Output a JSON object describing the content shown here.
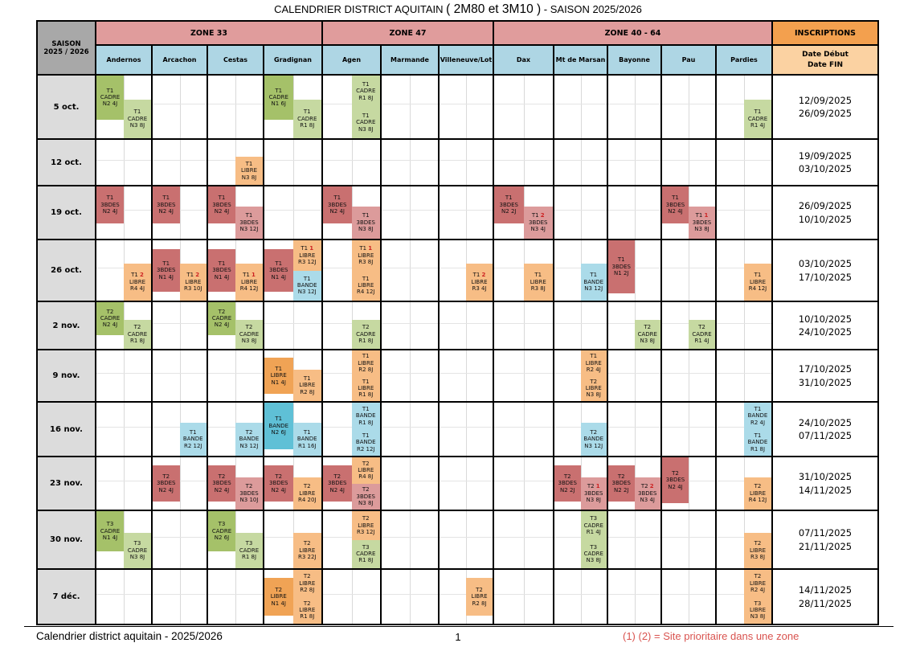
{
  "title": {
    "part1": "CALENDRIER DISTRICT AQUITAIN ",
    "part2": "( 2M80 et 3M10 )",
    "part3": " - SAISON 2025/2026"
  },
  "header": {
    "saison": "SAISON\n2025 / 2026",
    "inscriptions": "INSCRIPTIONS",
    "dates_label": "Date Début\nDate FIN",
    "zones": [
      {
        "label": "ZONE 33",
        "cities": [
          "Andernos",
          "Arcachon",
          "Cestas",
          "Gradignan"
        ]
      },
      {
        "label": "ZONE 47",
        "cities": [
          "Agen",
          "Marmande",
          "Villeneuve/Lot"
        ]
      },
      {
        "label": "ZONE 40 - 64",
        "cities": [
          "Dax",
          "Mt de Marsan",
          "Bayonne",
          "Pau",
          "Pardies"
        ]
      }
    ]
  },
  "palette": {
    "gd": "#a5c169",
    "gl": "#c6d9a1",
    "rd": "#c97070",
    "rl": "#dc9b9b",
    "od": "#f0a355",
    "ol": "#f7bd85",
    "bd": "#5fc0d6",
    "bl": "#abdbe9",
    "zone_header": "#e09c9c",
    "city_header": "#aed6e4",
    "inscriptions_header": "#f3a04e",
    "dates_header": "#fbd2a2",
    "saison_bg": "#a8a8a8",
    "rowlabel_bg": "#dcdcdc",
    "prio": "#cc2222",
    "legend_red": "#d9534f"
  },
  "rows": [
    {
      "date": "5 oct.",
      "debut": "12/09/2025",
      "fin": "26/09/2025",
      "cells": {
        "Andernos": [
          {
            "col": "L",
            "pos": "top",
            "c": "gd",
            "l1": "T1",
            "l2": "CADRE",
            "l3": "N2 4J"
          },
          {
            "col": "R",
            "pos": "bottom",
            "c": "gl",
            "l1": "T1",
            "l2": "CADRE",
            "l3": "N3 8J"
          }
        ],
        "Gradignan": [
          {
            "col": "L",
            "pos": "top",
            "c": "gd",
            "l1": "T1",
            "l2": "CADRE",
            "l3": "N1 6J"
          },
          {
            "col": "R",
            "pos": "bottom",
            "c": "gl",
            "l1": "T1",
            "l2": "CADRE",
            "l3": "R1 8J"
          }
        ],
        "Agen": [
          {
            "col": "R",
            "pos": "stack-top",
            "c": "gl",
            "l1": "T1",
            "l2": "CADRE",
            "l3": "R1 8J"
          },
          {
            "col": "R",
            "pos": "stack-bottom",
            "c": "gl",
            "l1": "T1",
            "l2": "CADRE",
            "l3": "N3 8J"
          }
        ],
        "Pardies": [
          {
            "col": "R",
            "pos": "bottom",
            "c": "gl",
            "l1": "T1",
            "l2": "CADRE",
            "l3": "R1 4J"
          }
        ]
      }
    },
    {
      "date": "12 oct.",
      "debut": "19/09/2025",
      "fin": "03/10/2025",
      "cells": {
        "Cestas": [
          {
            "col": "R",
            "pos": "bottom",
            "c": "ol",
            "l1": "T1",
            "l2": "LIBRE",
            "l3": "N3 8J"
          }
        ]
      }
    },
    {
      "date": "19 oct.",
      "debut": "26/09/2025",
      "fin": "10/10/2025",
      "cells": {
        "Andernos": [
          {
            "col": "L",
            "pos": "top",
            "c": "rd",
            "l1": "T1",
            "l2": "3BDES",
            "l3": "N2 4J"
          }
        ],
        "Arcachon": [
          {
            "col": "L",
            "pos": "top",
            "c": "rd",
            "l1": "T1",
            "l2": "3BDES",
            "l3": "N2 4J"
          }
        ],
        "Cestas": [
          {
            "col": "L",
            "pos": "top",
            "c": "rd",
            "l1": "T1",
            "l2": "3BDES",
            "l3": "N2 4J"
          },
          {
            "col": "R",
            "pos": "bottom",
            "c": "rl",
            "l1": "T1",
            "l2": "3BDES",
            "l3": "N3 12J"
          }
        ],
        "Agen": [
          {
            "col": "L",
            "pos": "top",
            "c": "rd",
            "l1": "T1",
            "l2": "3BDES",
            "l3": "N2 4J"
          },
          {
            "col": "R",
            "pos": "bottom",
            "c": "rl",
            "l1": "T1",
            "l2": "3BDES",
            "l3": "N3 8J"
          }
        ],
        "Dax": [
          {
            "col": "L",
            "pos": "top",
            "c": "rd",
            "l1": "T1",
            "l2": "3BDES",
            "l3": "N2 2J"
          },
          {
            "col": "R",
            "pos": "bottom",
            "c": "rl",
            "l1": "T1",
            "prio": "2",
            "l2": "3BDES",
            "l3": "N3 4J"
          }
        ],
        "Pau": [
          {
            "col": "L",
            "pos": "top",
            "c": "rd",
            "l1": "T1",
            "l2": "3BDES",
            "l3": "N2 4J"
          },
          {
            "col": "R",
            "pos": "bottom",
            "c": "rl",
            "l1": "T1",
            "prio": "1",
            "l2": "3BDES",
            "l3": "N3 8J"
          }
        ]
      }
    },
    {
      "date": "26 oct.",
      "debut": "03/10/2025",
      "fin": "17/10/2025",
      "cells": {
        "Andernos": [
          {
            "col": "R",
            "pos": "bottom",
            "c": "ol",
            "l1": "T1",
            "prio": "2",
            "l2": "LIBRE",
            "l3": "R4 4J"
          }
        ],
        "Arcachon": [
          {
            "col": "L",
            "pos": "mid",
            "c": "rd",
            "l1": "T1",
            "l2": "3BDES",
            "l3": "N1 4J"
          },
          {
            "col": "R",
            "pos": "bottom",
            "c": "ol",
            "l1": "T1",
            "prio": "2",
            "l2": "LIBRE",
            "l3": "R3 10J"
          }
        ],
        "Cestas": [
          {
            "col": "L",
            "pos": "mid",
            "c": "rd",
            "l1": "T1",
            "l2": "3BDES",
            "l3": "N1 4J"
          },
          {
            "col": "R",
            "pos": "bottom",
            "c": "ol",
            "l1": "T1",
            "prio": "1",
            "l2": "LIBRE",
            "l3": "R4 12J"
          }
        ],
        "Gradignan": [
          {
            "col": "L",
            "pos": "mid",
            "c": "rd",
            "l1": "T1",
            "l2": "3BDES",
            "l3": "N1 4J"
          },
          {
            "col": "R",
            "pos": "stack-top",
            "c": "ol",
            "l1": "T1",
            "prio": "1",
            "l2": "LIBRE",
            "l3": "R3 12J"
          },
          {
            "col": "R",
            "pos": "stack-bottom",
            "c": "bl",
            "l1": "T1",
            "l2": "BANDE",
            "l3": "N3 12J"
          }
        ],
        "Agen": [
          {
            "col": "R",
            "pos": "stack-top",
            "c": "ol",
            "l1": "T1",
            "prio": "1",
            "l2": "LIBRE",
            "l3": "R3 8J"
          },
          {
            "col": "R",
            "pos": "stack-bottom",
            "c": "ol",
            "l1": "T1",
            "l2": "LIBRE",
            "l3": "R4 12J"
          }
        ],
        "Villeneuve/Lot": [
          {
            "col": "R",
            "pos": "bottom",
            "c": "ol",
            "l1": "T1",
            "prio": "2",
            "l2": "LIBRE",
            "l3": "R3 4J"
          }
        ],
        "Dax": [
          {
            "col": "R",
            "pos": "bottom",
            "c": "ol",
            "l1": "T1",
            "l2": "LIBRE",
            "l3": "R3 8J"
          }
        ],
        "Mt de Marsan": [
          {
            "col": "R",
            "pos": "bottom",
            "c": "bl",
            "l1": "T1",
            "l2": "BANDE",
            "l3": "N3 12J"
          }
        ],
        "Bayonne": [
          {
            "col": "L",
            "pos": "tall",
            "c": "rd",
            "l1": "T1",
            "l2": "3BDES",
            "l3": "N1 2J"
          }
        ],
        "Pardies": [
          {
            "col": "R",
            "pos": "bottom",
            "c": "ol",
            "l1": "T1",
            "l2": "LIBRE",
            "l3": "R4 12J"
          }
        ]
      }
    },
    {
      "date": "2 nov.",
      "debut": "10/10/2025",
      "fin": "24/10/2025",
      "cells": {
        "Andernos": [
          {
            "col": "L",
            "pos": "top",
            "c": "gd",
            "l1": "T2",
            "l2": "CADRE",
            "l3": "N2 4J"
          },
          {
            "col": "R",
            "pos": "bottom",
            "c": "gl",
            "l1": "T2",
            "l2": "CADRE",
            "l3": "R1 8J"
          }
        ],
        "Cestas": [
          {
            "col": "L",
            "pos": "top",
            "c": "gd",
            "l1": "T2",
            "l2": "CADRE",
            "l3": "N2 4J"
          },
          {
            "col": "R",
            "pos": "bottom",
            "c": "gl",
            "l1": "T2",
            "l2": "CADRE",
            "l3": "N3 8J"
          }
        ],
        "Agen": [
          {
            "col": "R",
            "pos": "bottom",
            "c": "gl",
            "l1": "T2",
            "l2": "CADRE",
            "l3": "R1 8J"
          }
        ],
        "Bayonne": [
          {
            "col": "R",
            "pos": "bottom",
            "c": "gl",
            "l1": "T2",
            "l2": "CADRE",
            "l3": "N3 8J"
          }
        ],
        "Pau": [
          {
            "col": "R",
            "pos": "bottom",
            "c": "gl",
            "l1": "T2",
            "l2": "CADRE",
            "l3": "R1 4J"
          }
        ]
      }
    },
    {
      "date": "9 nov.",
      "debut": "17/10/2025",
      "fin": "31/10/2025",
      "cells": {
        "Gradignan": [
          {
            "col": "L",
            "pos": "mid",
            "c": "od",
            "l1": "T1",
            "l2": "LIBRE",
            "l3": "N1 4J"
          },
          {
            "col": "R",
            "pos": "bottom",
            "c": "ol",
            "l1": "T1",
            "l2": "LIBRE",
            "l3": "R2 8J"
          }
        ],
        "Agen": [
          {
            "col": "R",
            "pos": "stack-top",
            "c": "ol",
            "l1": "T1",
            "l2": "LIBRE",
            "l3": "R2 8J"
          },
          {
            "col": "R",
            "pos": "stack-bottom",
            "c": "ol",
            "l1": "T1",
            "l2": "LIBRE",
            "l3": "R1 8J"
          }
        ],
        "Mt de Marsan": [
          {
            "col": "R",
            "pos": "stack-top",
            "c": "ol",
            "l1": "T1",
            "l2": "LIBRE",
            "l3": "R2 4J"
          },
          {
            "col": "R",
            "pos": "stack-bottom",
            "c": "ol",
            "l1": "T2",
            "l2": "LIBRE",
            "l3": "N3 8J"
          }
        ]
      }
    },
    {
      "date": "16 nov.",
      "debut": "24/10/2025",
      "fin": "07/11/2025",
      "cells": {
        "Arcachon": [
          {
            "col": "R",
            "pos": "bottom",
            "c": "bl",
            "l1": "T1",
            "l2": "BANDE",
            "l3": "R2 12J"
          }
        ],
        "Cestas": [
          {
            "col": "R",
            "pos": "bottom",
            "c": "bl",
            "l1": "T2",
            "l2": "BANDE",
            "l3": "N3 12J"
          }
        ],
        "Gradignan": [
          {
            "col": "L",
            "pos": "tall",
            "c": "bd",
            "l1": "T1",
            "l2": "BANDE",
            "l3": "N2 6J"
          },
          {
            "col": "R",
            "pos": "bottom",
            "c": "bl",
            "l1": "T1",
            "l2": "BANDE",
            "l3": "R1 16J"
          }
        ],
        "Agen": [
          {
            "col": "R",
            "pos": "stack-top",
            "c": "bl",
            "l1": "T1",
            "l2": "BANDE",
            "l3": "R1 8J"
          },
          {
            "col": "R",
            "pos": "stack-bottom",
            "c": "bl",
            "l1": "T1",
            "l2": "BANDE",
            "l3": "R2 12J"
          }
        ],
        "Mt de Marsan": [
          {
            "col": "R",
            "pos": "bottom",
            "c": "bl",
            "l1": "T2",
            "l2": "BANDE",
            "l3": "N3 12J"
          }
        ],
        "Pardies": [
          {
            "col": "R",
            "pos": "stack-top",
            "c": "bl",
            "l1": "T1",
            "l2": "BANDE",
            "l3": "R2 4J"
          },
          {
            "col": "R",
            "pos": "stack-bottom",
            "c": "bl",
            "l1": "T1",
            "l2": "BANDE",
            "l3": "R1 8J"
          }
        ]
      }
    },
    {
      "date": "23 nov.",
      "debut": "31/10/2025",
      "fin": "14/11/2025",
      "cells": {
        "Arcachon": [
          {
            "col": "L",
            "pos": "mid",
            "c": "rd",
            "l1": "T2",
            "l2": "3BDES",
            "l3": "N2 4J"
          }
        ],
        "Cestas": [
          {
            "col": "L",
            "pos": "mid",
            "c": "rd",
            "l1": "T2",
            "l2": "3BDES",
            "l3": "N2 4J"
          },
          {
            "col": "R",
            "pos": "bottom",
            "c": "rl",
            "l1": "T2",
            "l2": "3BDES",
            "l3": "N3 10J"
          }
        ],
        "Gradignan": [
          {
            "col": "L",
            "pos": "mid",
            "c": "rd",
            "l1": "T2",
            "l2": "3BDES",
            "l3": "N2 4J"
          },
          {
            "col": "R",
            "pos": "bottom",
            "c": "ol",
            "l1": "T2",
            "l2": "LIBRE",
            "l3": "R4 20J"
          }
        ],
        "Agen": [
          {
            "col": "L",
            "pos": "mid",
            "c": "rd",
            "l1": "T2",
            "l2": "3BDES",
            "l3": "N2 4J"
          },
          {
            "col": "R",
            "pos": "stack-top",
            "c": "ol",
            "l1": "T2",
            "l2": "LIBRE",
            "l3": "R4 8J"
          },
          {
            "col": "R",
            "pos": "stack-bottom",
            "c": "rl",
            "l1": "T2",
            "l2": "3BDES",
            "l3": "N3 8J"
          }
        ],
        "Mt de Marsan": [
          {
            "col": "L",
            "pos": "mid",
            "c": "rd",
            "l1": "T2",
            "l2": "3BDES",
            "l3": "N2 2J"
          },
          {
            "col": "R",
            "pos": "bottom",
            "c": "rl",
            "l1": "T2",
            "prio": "1",
            "l2": "3BDES",
            "l3": "N3 8J"
          }
        ],
        "Bayonne": [
          {
            "col": "L",
            "pos": "mid",
            "c": "rd",
            "l1": "T2",
            "l2": "3BDES",
            "l3": "N2 2J"
          },
          {
            "col": "R",
            "pos": "bottom",
            "c": "rl",
            "l1": "T2",
            "prio": "2",
            "l2": "3BDES",
            "l3": "N3 4J"
          }
        ],
        "Pau": [
          {
            "col": "L",
            "pos": "tall",
            "c": "rd",
            "l1": "T2",
            "l2": "3BDES",
            "l3": "N2 4J"
          }
        ],
        "Pardies": [
          {
            "col": "R",
            "pos": "bottom",
            "c": "ol",
            "l1": "T2",
            "l2": "LIBRE",
            "l3": "R4 12J"
          }
        ]
      }
    },
    {
      "date": "30 nov.",
      "debut": "07/11/2025",
      "fin": "21/11/2025",
      "cells": {
        "Andernos": [
          {
            "col": "L",
            "pos": "top",
            "c": "gd",
            "l1": "T3",
            "l2": "CADRE",
            "l3": "N1 4J"
          },
          {
            "col": "R",
            "pos": "bottom",
            "c": "gl",
            "l1": "T3",
            "l2": "CADRE",
            "l3": "N3 8J"
          }
        ],
        "Cestas": [
          {
            "col": "L",
            "pos": "top",
            "c": "gd",
            "l1": "T3",
            "l2": "CADRE",
            "l3": "N2 6J"
          },
          {
            "col": "R",
            "pos": "bottom",
            "c": "gl",
            "l1": "T3",
            "l2": "CADRE",
            "l3": "R1 8J"
          }
        ],
        "Gradignan": [
          {
            "col": "R",
            "pos": "bottom",
            "c": "ol",
            "l1": "T2",
            "l2": "LIBRE",
            "l3": "R3 22J"
          }
        ],
        "Agen": [
          {
            "col": "R",
            "pos": "stack-top",
            "c": "ol",
            "l1": "T2",
            "l2": "LIBRE",
            "l3": "R3 12J"
          },
          {
            "col": "R",
            "pos": "stack-bottom",
            "c": "gl",
            "l1": "T3",
            "l2": "CADRE",
            "l3": "R1 8J"
          }
        ],
        "Mt de Marsan": [
          {
            "col": "R",
            "pos": "stack-top",
            "c": "gl",
            "l1": "T3",
            "l2": "CADRE",
            "l3": "R1 4J"
          },
          {
            "col": "R",
            "pos": "stack-bottom",
            "c": "gl",
            "l1": "T3",
            "l2": "CADRE",
            "l3": "N3 8J"
          }
        ],
        "Pardies": [
          {
            "col": "R",
            "pos": "bottom",
            "c": "ol",
            "l1": "T2",
            "l2": "LIBRE",
            "l3": "R3 8J"
          }
        ]
      }
    },
    {
      "date": "7 déc.",
      "debut": "14/11/2025",
      "fin": "28/11/2025",
      "cells": {
        "Gradignan": [
          {
            "col": "L",
            "pos": "mid",
            "c": "od",
            "l1": "T2",
            "l2": "LIBRE",
            "l3": "N1 4J"
          },
          {
            "col": "R",
            "pos": "stack-top",
            "c": "ol",
            "l1": "T2",
            "l2": "LIBRE",
            "l3": "R2 8J"
          },
          {
            "col": "R",
            "pos": "stack-bottom",
            "c": "ol",
            "l1": "T2",
            "l2": "LIBRE",
            "l3": "R1 8J"
          }
        ],
        "Villeneuve/Lot": [
          {
            "col": "R",
            "pos": "mid",
            "c": "ol",
            "l1": "T2",
            "l2": "LIBRE",
            "l3": "R2 8J"
          }
        ],
        "Pardies": [
          {
            "col": "R",
            "pos": "stack-top",
            "c": "ol",
            "l1": "T2",
            "l2": "LIBRE",
            "l3": "R2 4J"
          },
          {
            "col": "R",
            "pos": "stack-bottom",
            "c": "ol",
            "l1": "T3",
            "l2": "LIBRE",
            "l3": "N3 8J"
          }
        ]
      }
    }
  ],
  "footer": {
    "left": "Calendrier district aquitain - 2025/2026",
    "page": "1",
    "legend": "(1) (2) = Site prioritaire dans une zone"
  }
}
